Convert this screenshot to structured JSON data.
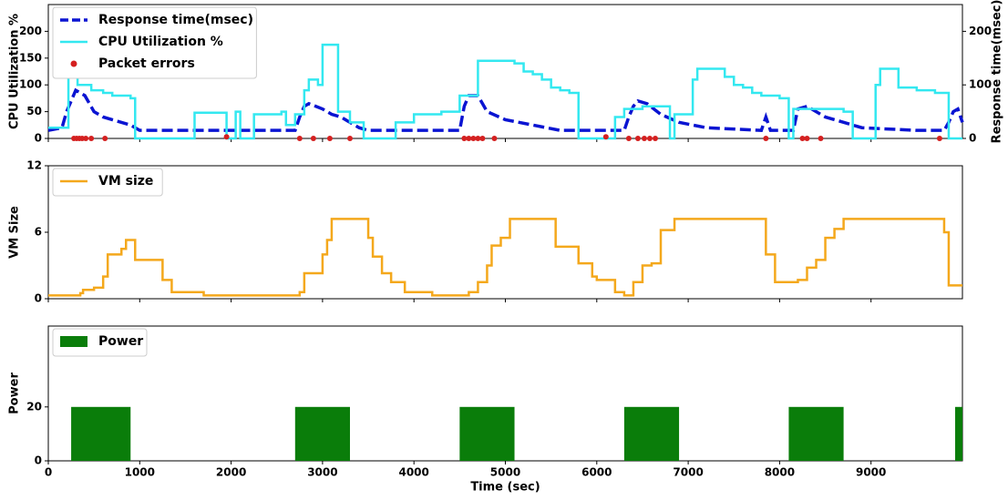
{
  "chart_data": [
    {
      "type": "line",
      "ylabel": "CPU Utilization %",
      "y2label": "Response time(msec)",
      "xlim": [
        0,
        10000
      ],
      "ylim": [
        0,
        250
      ],
      "yticks": [
        0,
        50,
        100,
        150,
        200
      ],
      "y2lim": [
        0,
        250
      ],
      "y2ticks": [
        0,
        100,
        200
      ],
      "legend": "upper-left",
      "series": [
        {
          "name": "Response time(msec)",
          "color": "#0a14d2",
          "axis": "y2",
          "linestyle": "dashed",
          "x": [
            0,
            150,
            200,
            300,
            400,
            500,
            600,
            700,
            900,
            1000,
            2700,
            2750,
            2800,
            2850,
            3000,
            3100,
            3200,
            3400,
            3500,
            4500,
            4550,
            4600,
            4700,
            4800,
            5000,
            5300,
            5600,
            6300,
            6350,
            6400,
            6450,
            6550,
            6700,
            6900,
            7200,
            7800,
            7850,
            7900,
            8150,
            8200,
            8300,
            8500,
            8700,
            8900,
            9500,
            9800,
            9850,
            9900,
            9950,
            10000
          ],
          "values": [
            15,
            20,
            50,
            90,
            80,
            50,
            40,
            35,
            25,
            15,
            15,
            40,
            60,
            65,
            55,
            45,
            40,
            20,
            15,
            15,
            60,
            80,
            80,
            50,
            35,
            25,
            15,
            15,
            40,
            60,
            70,
            65,
            45,
            30,
            20,
            15,
            40,
            15,
            15,
            55,
            60,
            40,
            30,
            20,
            15,
            15,
            30,
            50,
            55,
            30
          ]
        },
        {
          "name": "CPU Utilization %",
          "color": "#33e8f0",
          "step": true,
          "x": [
            0,
            220,
            320,
            470,
            600,
            700,
            900,
            950,
            1600,
            1950,
            2050,
            2100,
            2250,
            2550,
            2600,
            2700,
            2800,
            2850,
            2950,
            3000,
            3170,
            3300,
            3450,
            3800,
            4000,
            4300,
            4500,
            4700,
            5000,
            5100,
            5200,
            5300,
            5400,
            5500,
            5600,
            5700,
            5800,
            6200,
            6300,
            6500,
            6800,
            6850,
            7050,
            7100,
            7400,
            7500,
            7600,
            7700,
            7800,
            8000,
            8100,
            8150,
            8700,
            8800,
            9050,
            9100,
            9300,
            9500,
            9700,
            9850,
            10000
          ],
          "values": [
            20,
            140,
            100,
            90,
            85,
            80,
            75,
            0,
            48,
            0,
            50,
            0,
            45,
            50,
            25,
            45,
            90,
            110,
            100,
            175,
            50,
            30,
            0,
            30,
            45,
            50,
            80,
            145,
            145,
            140,
            125,
            120,
            110,
            95,
            90,
            85,
            0,
            40,
            55,
            60,
            0,
            45,
            110,
            130,
            115,
            100,
            95,
            85,
            80,
            75,
            0,
            55,
            50,
            0,
            100,
            130,
            95,
            90,
            85,
            0,
            0
          ]
        },
        {
          "name": "Packet errors",
          "color": "#d42020",
          "type": "scatter",
          "x": [
            280,
            310,
            340,
            370,
            410,
            470,
            620,
            1950,
            2750,
            2900,
            3080,
            3300,
            4550,
            4600,
            4650,
            4700,
            4750,
            4880,
            6100,
            6350,
            6450,
            6520,
            6580,
            6640,
            7850,
            8250,
            8300,
            8450,
            9750
          ],
          "values": [
            0,
            0,
            0,
            0,
            0,
            0,
            0,
            3,
            0,
            0,
            0,
            0,
            0,
            0,
            0,
            0,
            0,
            0,
            3,
            0,
            0,
            0,
            0,
            0,
            0,
            0,
            0,
            0,
            0
          ]
        }
      ]
    },
    {
      "type": "line",
      "ylabel": "VM Size",
      "xlim": [
        0,
        10000
      ],
      "ylim": [
        0,
        12
      ],
      "yticks": [
        0,
        6,
        12
      ],
      "legend": "upper-left",
      "series": [
        {
          "name": "VM size",
          "color": "#f4a81c",
          "step": true,
          "x": [
            0,
            350,
            380,
            500,
            600,
            650,
            800,
            850,
            950,
            1200,
            1250,
            1350,
            1700,
            2700,
            2750,
            2800,
            3000,
            3050,
            3100,
            3500,
            3550,
            3650,
            3750,
            3900,
            4200,
            4600,
            4700,
            4800,
            4850,
            4950,
            5050,
            5550,
            5800,
            5950,
            6000,
            6200,
            6300,
            6400,
            6500,
            6600,
            6700,
            6850,
            7850,
            7950,
            8200,
            8300,
            8400,
            8500,
            8600,
            8700,
            9800,
            9850,
            10000
          ],
          "values": [
            0.3,
            0.5,
            0.8,
            1,
            2,
            4,
            4.5,
            5.3,
            3.5,
            3.5,
            1.7,
            0.6,
            0.3,
            0.3,
            0.6,
            2.3,
            4,
            5.3,
            7.2,
            5.5,
            3.8,
            2.3,
            1.5,
            0.6,
            0.3,
            0.6,
            1.5,
            3,
            4.8,
            5.5,
            7.2,
            4.7,
            3.2,
            2,
            1.7,
            0.6,
            0.3,
            1.5,
            3,
            3.2,
            6.2,
            7.2,
            4,
            1.5,
            1.7,
            2.8,
            3.5,
            5.5,
            6.3,
            7.2,
            6,
            1.2,
            1.2
          ]
        }
      ]
    },
    {
      "type": "bar",
      "ylabel": "Power",
      "xlabel": "Time (sec)",
      "xlim": [
        0,
        10000
      ],
      "ylim": [
        0,
        50
      ],
      "yticks": [
        0,
        20
      ],
      "xticks": [
        0,
        1000,
        2000,
        3000,
        4000,
        5000,
        6000,
        7000,
        8000,
        9000
      ],
      "legend": "upper-left",
      "series": [
        {
          "name": "Power",
          "color": "#0a7d0a",
          "x_start": [
            250,
            2700,
            4500,
            6300,
            8100,
            9920
          ],
          "x_end": [
            900,
            3300,
            5100,
            6900,
            8700,
            10000
          ],
          "values": [
            20,
            20,
            20,
            20,
            20,
            20
          ]
        }
      ]
    }
  ]
}
